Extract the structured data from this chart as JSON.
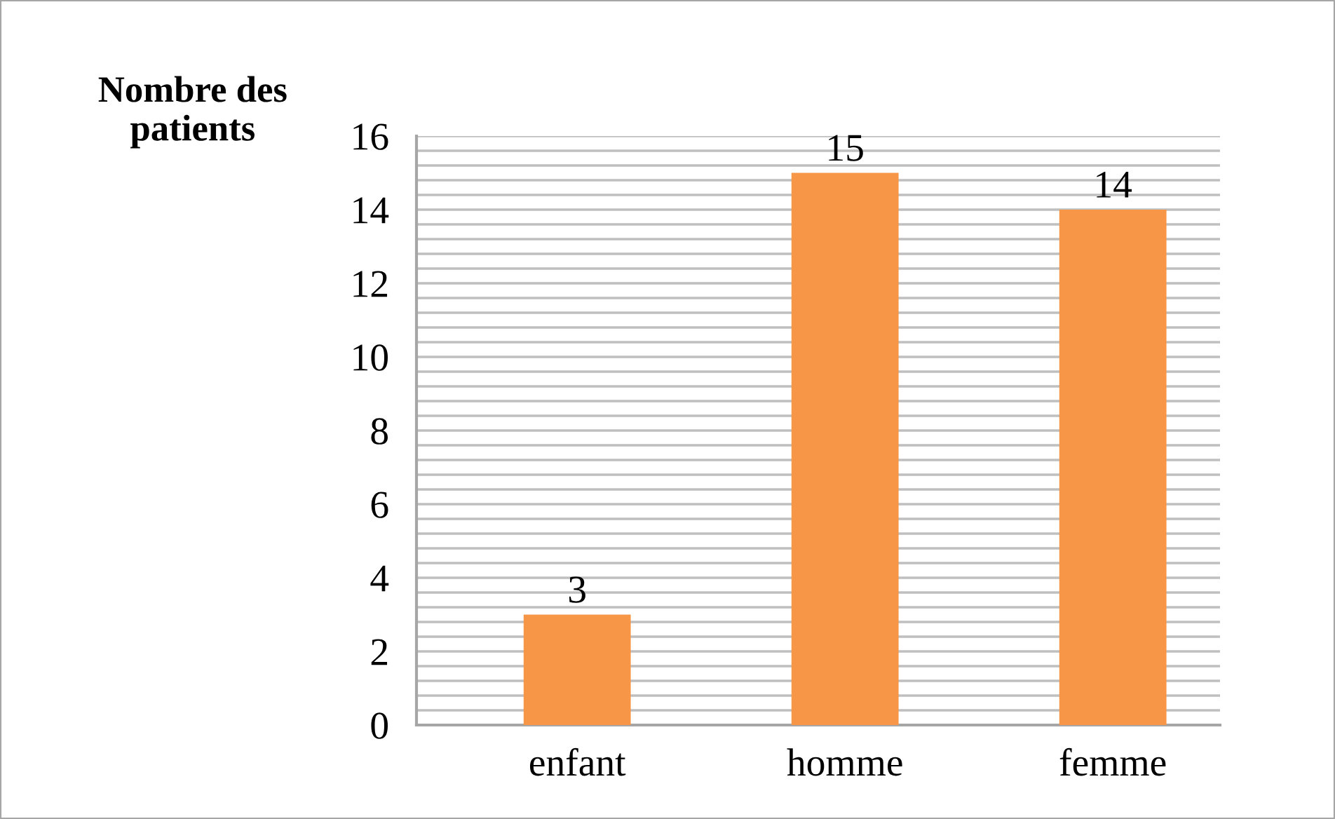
{
  "chart_data": {
    "type": "bar",
    "ylabel": "Nombre des patients",
    "categories": [
      "enfant",
      "homme",
      "femme"
    ],
    "values": [
      3,
      15,
      14
    ],
    "color": "#f79646",
    "data_labels": true,
    "ylim": [
      0,
      16
    ],
    "yticks": [
      0,
      {
        "value": 0.4,
        "label": null
      },
      {
        "value": 0.8,
        "label": null
      },
      {
        "value": 1.2,
        "label": null
      },
      {
        "value": 1.6,
        "label": null
      },
      2,
      {
        "value": 2.4,
        "label": null
      },
      {
        "value": 2.8,
        "label": null
      },
      {
        "value": 3.2,
        "label": null
      },
      {
        "value": 3.6,
        "label": null
      },
      4,
      {
        "value": 4.4,
        "label": null
      },
      {
        "value": 4.8,
        "label": null
      },
      {
        "value": 5.2,
        "label": null
      },
      {
        "value": 5.6,
        "label": null
      },
      6,
      {
        "value": 6.4,
        "label": null
      },
      {
        "value": 6.8,
        "label": null
      },
      {
        "value": 7.2,
        "label": null
      },
      {
        "value": 7.6,
        "label": null
      },
      8,
      {
        "value": 8.4,
        "label": null
      },
      {
        "value": 8.8,
        "label": null
      },
      {
        "value": 9.2,
        "label": null
      },
      {
        "value": 9.6,
        "label": null
      },
      10,
      {
        "value": 10.4,
        "label": null
      },
      {
        "value": 10.8,
        "label": null
      },
      {
        "value": 11.2,
        "label": null
      },
      {
        "value": 11.6,
        "label": null
      },
      12,
      {
        "value": 12.4,
        "label": null
      },
      {
        "value": 12.8,
        "label": null
      },
      {
        "value": 13.2,
        "label": null
      },
      {
        "value": 13.6,
        "label": null
      },
      14,
      {
        "value": 14.4,
        "label": null
      },
      {
        "value": 14.8,
        "label": null
      },
      {
        "value": 15.2,
        "label": null
      },
      {
        "value": 15.6,
        "label": null
      },
      16
    ],
    "grid": "y",
    "legend": false
  }
}
